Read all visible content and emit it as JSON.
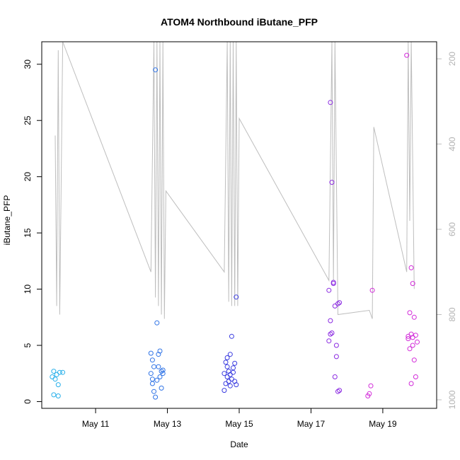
{
  "chart_data": {
    "type": "scatter",
    "title": "ATOM4 Northbound iButane_PFP",
    "xlabel": "Date",
    "ylabel": "iButane_PFP",
    "xlim": [
      "2017-05-09T12:00",
      "2017-05-20T12:00"
    ],
    "ylim": [
      -0.6,
      32
    ],
    "x_ticks": [
      {
        "label": "May 11",
        "value": "2017-05-11"
      },
      {
        "label": "May 13",
        "value": "2017-05-13"
      },
      {
        "label": "May 15",
        "value": "2017-05-15"
      },
      {
        "label": "May 17",
        "value": "2017-05-17"
      },
      {
        "label": "May 19",
        "value": "2017-05-19"
      }
    ],
    "y_ticks": [
      0,
      5,
      10,
      15,
      20,
      25,
      30
    ],
    "secondary_y": {
      "ticks": [
        200,
        400,
        600,
        800,
        1000
      ],
      "lim": [
        160,
        1020
      ],
      "inverted": true,
      "color": "#bebebe",
      "path": [
        [
          "2017-05-09T21:00",
          380
        ],
        [
          "2017-05-09T22:00",
          780
        ],
        [
          "2017-05-09T23:00",
          180
        ],
        [
          "2017-05-10T00:00",
          800
        ],
        [
          "2017-05-10T02:00",
          160
        ],
        [
          "2017-05-12T13:00",
          700
        ],
        [
          "2017-05-12T15:00",
          160
        ],
        [
          "2017-05-12T16:00",
          760
        ],
        [
          "2017-05-12T17:00",
          160
        ],
        [
          "2017-05-12T18:00",
          780
        ],
        [
          "2017-05-12T19:00",
          160
        ],
        [
          "2017-05-12T20:00",
          800
        ],
        [
          "2017-05-12T21:00",
          160
        ],
        [
          "2017-05-12T22:00",
          810
        ],
        [
          "2017-05-12T23:00",
          510
        ],
        [
          "2017-05-14T14:00",
          700
        ],
        [
          "2017-05-14T16:00",
          160
        ],
        [
          "2017-05-14T17:00",
          770
        ],
        [
          "2017-05-14T18:00",
          160
        ],
        [
          "2017-05-14T19:00",
          780
        ],
        [
          "2017-05-14T20:00",
          160
        ],
        [
          "2017-05-14T21:00",
          780
        ],
        [
          "2017-05-14T22:00",
          160
        ],
        [
          "2017-05-14T23:00",
          780
        ],
        [
          "2017-05-15T00:00",
          340
        ],
        [
          "2017-05-17T12:00",
          720
        ],
        [
          "2017-05-17T14:00",
          160
        ],
        [
          "2017-05-17T15:00",
          720
        ],
        [
          "2017-05-17T16:00",
          160
        ],
        [
          "2017-05-17T18:00",
          800
        ],
        [
          "2017-05-18T15:00",
          790
        ],
        [
          "2017-05-18T17:00",
          810
        ],
        [
          "2017-05-18T18:00",
          360
        ],
        [
          "2017-05-19T16:00",
          700
        ],
        [
          "2017-05-19T17:00",
          160
        ],
        [
          "2017-05-19T18:00",
          580
        ],
        [
          "2017-05-19T19:00",
          160
        ],
        [
          "2017-05-19T21:00",
          740
        ]
      ]
    },
    "series": [
      {
        "color": "#29b0ea",
        "points": [
          [
            "2017-05-09T19:00",
            2.2
          ],
          [
            "2017-05-09T20:00",
            0.6
          ],
          [
            "2017-05-09T21:00",
            2.0
          ],
          [
            "2017-05-09T22:00",
            2.4
          ],
          [
            "2017-05-09T23:00",
            1.5
          ],
          [
            "2017-05-09T23:00",
            0.5
          ],
          [
            "2017-05-10T00:00",
            2.6
          ],
          [
            "2017-05-10T02:00",
            2.6
          ],
          [
            "2017-05-09T20:00",
            2.7
          ]
        ]
      },
      {
        "color": "#2f73e6",
        "points": [
          [
            "2017-05-12T13:00",
            4.3
          ],
          [
            "2017-05-12T13:00",
            2.5
          ],
          [
            "2017-05-12T14:00",
            1.6
          ],
          [
            "2017-05-12T14:00",
            3.7
          ],
          [
            "2017-05-12T15:00",
            0.9
          ],
          [
            "2017-05-12T15:00",
            3.1
          ],
          [
            "2017-05-12T16:00",
            29.5
          ],
          [
            "2017-05-12T16:00",
            0.4
          ],
          [
            "2017-05-12T17:00",
            7.0
          ],
          [
            "2017-05-12T17:00",
            1.9
          ],
          [
            "2017-05-12T18:00",
            4.2
          ],
          [
            "2017-05-12T18:00",
            3.1
          ],
          [
            "2017-05-12T19:00",
            2.2
          ],
          [
            "2017-05-12T19:00",
            4.5
          ],
          [
            "2017-05-12T20:00",
            1.2
          ],
          [
            "2017-05-12T20:00",
            2.7
          ],
          [
            "2017-05-12T21:00",
            2.8
          ],
          [
            "2017-05-12T21:00",
            2.5
          ],
          [
            "2017-05-12T14:00",
            2.0
          ]
        ]
      },
      {
        "color": "#3a3ce0",
        "points": [
          [
            "2017-05-14T14:00",
            1.0
          ],
          [
            "2017-05-14T14:00",
            2.5
          ],
          [
            "2017-05-14T15:00",
            1.6
          ],
          [
            "2017-05-14T15:00",
            3.5
          ],
          [
            "2017-05-14T16:00",
            2.2
          ],
          [
            "2017-05-14T16:00",
            3.9
          ],
          [
            "2017-05-14T17:00",
            1.8
          ],
          [
            "2017-05-14T17:00",
            2.7
          ],
          [
            "2017-05-14T18:00",
            4.2
          ],
          [
            "2017-05-14T18:00",
            1.4
          ],
          [
            "2017-05-14T19:00",
            5.8
          ],
          [
            "2017-05-14T19:00",
            2.0
          ],
          [
            "2017-05-14T20:00",
            3.0
          ],
          [
            "2017-05-14T20:00",
            2.6
          ],
          [
            "2017-05-14T21:00",
            1.8
          ],
          [
            "2017-05-14T21:00",
            3.4
          ],
          [
            "2017-05-14T22:00",
            9.3
          ],
          [
            "2017-05-14T22:00",
            1.5
          ],
          [
            "2017-05-14T18:00",
            2.4
          ],
          [
            "2017-05-14T16:00",
            3.1
          ]
        ]
      },
      {
        "color": "#8b2be2",
        "points": [
          [
            "2017-05-17T12:00",
            5.4
          ],
          [
            "2017-05-17T12:00",
            9.9
          ],
          [
            "2017-05-17T13:00",
            26.6
          ],
          [
            "2017-05-17T13:00",
            7.2
          ],
          [
            "2017-05-17T14:00",
            19.5
          ],
          [
            "2017-05-17T14:00",
            6.1
          ],
          [
            "2017-05-17T15:00",
            10.5
          ],
          [
            "2017-05-17T15:00",
            10.6
          ],
          [
            "2017-05-17T16:00",
            2.2
          ],
          [
            "2017-05-17T16:00",
            8.5
          ],
          [
            "2017-05-17T17:00",
            4.0
          ],
          [
            "2017-05-17T18:00",
            8.7
          ],
          [
            "2017-05-17T18:00",
            0.9
          ],
          [
            "2017-05-17T19:00",
            1.0
          ],
          [
            "2017-05-17T17:00",
            5.0
          ],
          [
            "2017-05-17T19:00",
            8.8
          ],
          [
            "2017-05-17T13:00",
            6.0
          ]
        ]
      },
      {
        "color": "#d22bd9",
        "points": [
          [
            "2017-05-18T14:00",
            0.5
          ],
          [
            "2017-05-18T15:00",
            0.7
          ],
          [
            "2017-05-18T16:00",
            1.4
          ],
          [
            "2017-05-18T17:00",
            9.9
          ],
          [
            "2017-05-19T16:00",
            30.8
          ],
          [
            "2017-05-19T17:00",
            5.8
          ],
          [
            "2017-05-19T17:00",
            5.6
          ],
          [
            "2017-05-19T18:00",
            7.9
          ],
          [
            "2017-05-19T18:00",
            4.7
          ],
          [
            "2017-05-19T19:00",
            11.9
          ],
          [
            "2017-05-19T19:00",
            6.0
          ],
          [
            "2017-05-19T20:00",
            10.5
          ],
          [
            "2017-05-19T20:00",
            5.0
          ],
          [
            "2017-05-19T21:00",
            7.5
          ],
          [
            "2017-05-19T21:00",
            3.7
          ],
          [
            "2017-05-19T22:00",
            2.2
          ],
          [
            "2017-05-19T22:00",
            5.9
          ],
          [
            "2017-05-19T23:00",
            5.3
          ],
          [
            "2017-05-19T19:00",
            1.6
          ],
          [
            "2017-05-19T20:00",
            5.7
          ]
        ]
      }
    ]
  }
}
